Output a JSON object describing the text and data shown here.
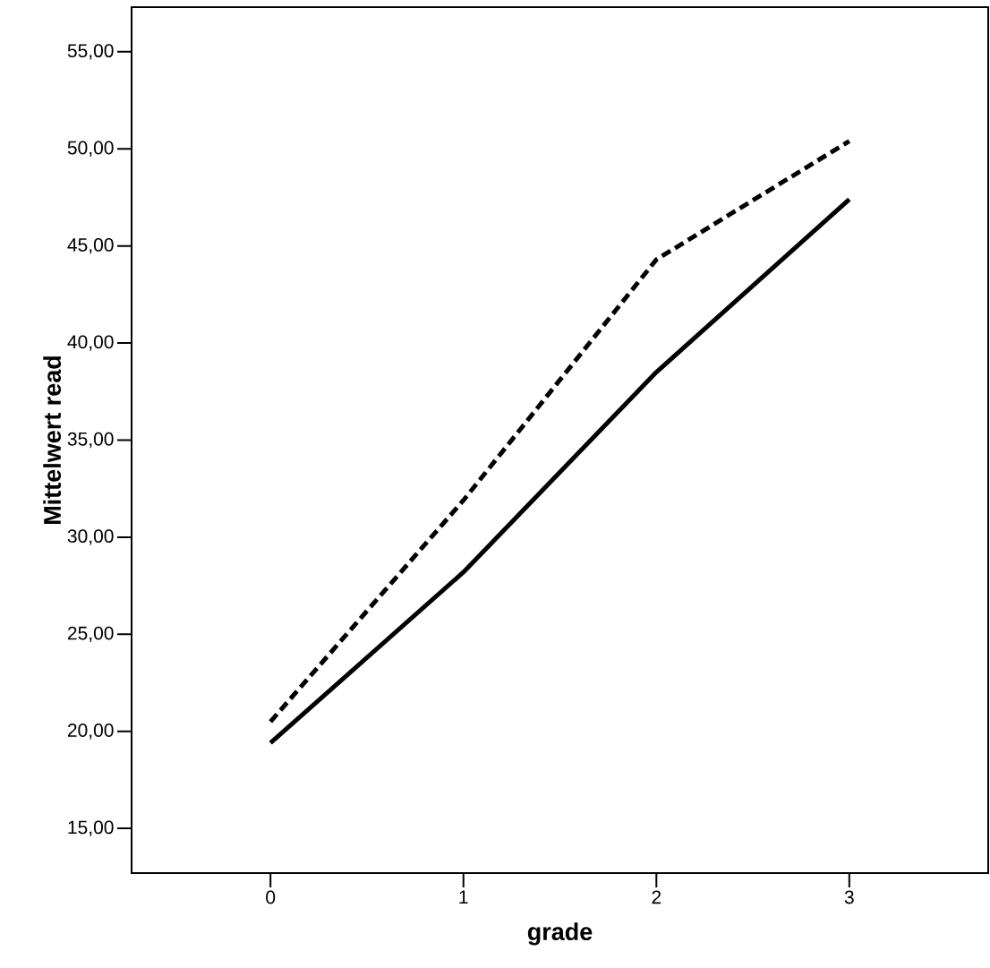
{
  "chart_data": {
    "type": "line",
    "xlabel": "grade",
    "ylabel": "Mittelwert read",
    "categories": [
      "0",
      "1",
      "2",
      "3"
    ],
    "series": [
      {
        "color": "#000000",
        "line_style": "solid",
        "values": [
          19.4,
          28.2,
          38.5,
          47.4
        ]
      },
      {
        "color": "#000000",
        "line_style": "dashed",
        "values": [
          20.5,
          31.9,
          44.3,
          50.4
        ]
      }
    ],
    "ylim": [
      12.7,
      57.3
    ],
    "yticks": [
      {
        "value": 15,
        "label": "15,00"
      },
      {
        "value": 20,
        "label": "20,00"
      },
      {
        "value": 25,
        "label": "25,00"
      },
      {
        "value": 30,
        "label": "30,00"
      },
      {
        "value": 35,
        "label": "35,00"
      },
      {
        "value": 40,
        "label": "40,00"
      },
      {
        "value": 45,
        "label": "45,00"
      },
      {
        "value": 50,
        "label": "50,00"
      },
      {
        "value": 55,
        "label": "55,00"
      }
    ],
    "grid": false,
    "legend": false,
    "marker": "none"
  }
}
